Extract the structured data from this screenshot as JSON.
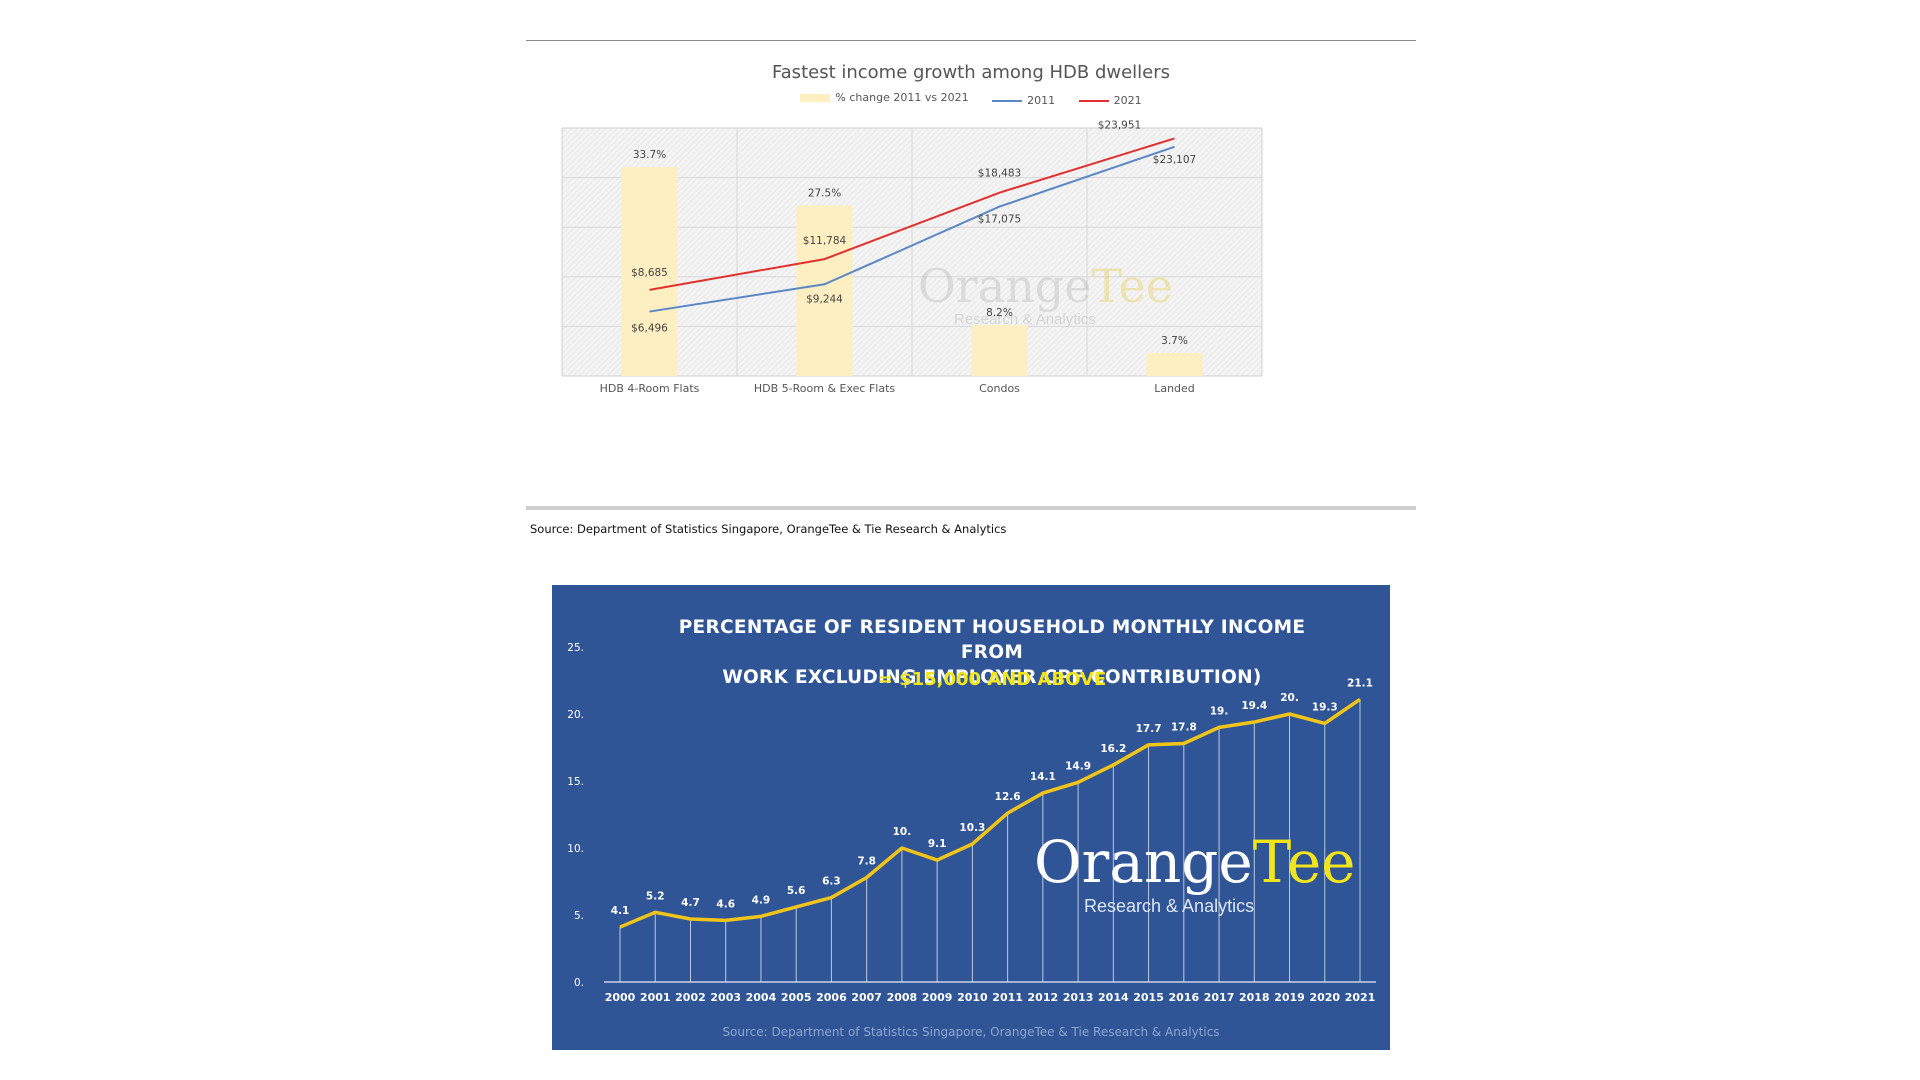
{
  "top_chart": {
    "title": "Fastest income growth among HDB dwellers",
    "legend": {
      "bar": "% change 2011 vs 2021",
      "line1": "2011",
      "line2": "2021"
    },
    "source": "Source: Department of Statistics Singapore, OrangeTee & Tie Research & Analytics",
    "logo": {
      "brand_a": "Orange",
      "brand_b": "Tee",
      "tagline": "Research & Analytics"
    }
  },
  "bottom_chart": {
    "title_line1": "PERCENTAGE OF RESIDENT HOUSEHOLD MONTHLY INCOME FROM",
    "title_line2": "WORK EXCLUDING EMPLOYER CPF CONTRIBUTION)",
    "subtitle": "= $15,000 AND ABOVE",
    "source": "Source: Department of Statistics Singapore, OrangeTee & Tie Research & Analytics",
    "logo": {
      "brand_a": "Orange",
      "brand_b": "Tee",
      "tagline": "Research & Analytics"
    }
  },
  "colors": {
    "bar": "#fdefc2",
    "line_2011": "#5b87c5",
    "line_2021": "#e03030",
    "bottom_bg": "#2f5597",
    "bottom_line": "#f0c419",
    "bottom_highlight": "#f2e51c"
  },
  "chart_data": [
    {
      "type": "bar",
      "title": "Fastest income growth among HDB dwellers",
      "categories": [
        "HDB 4-Room Flats",
        "HDB 5-Room & Exec Flats",
        "Condos",
        "Landed"
      ],
      "series": [
        {
          "name": "% change 2011 vs 2021",
          "type": "bar",
          "values": [
            33.7,
            27.5,
            8.2,
            3.7
          ],
          "labels": [
            "33.7%",
            "27.5%",
            "8.2%",
            "3.7%"
          ]
        },
        {
          "name": "2011",
          "type": "line",
          "values": [
            6496,
            9244,
            17075,
            23107
          ],
          "labels": [
            "$6,496",
            "$9,244",
            "$17,075",
            "$23,107"
          ]
        },
        {
          "name": "2021",
          "type": "line",
          "values": [
            8685,
            11784,
            18483,
            23951
          ],
          "labels": [
            "$8,685",
            "$11,784",
            "$18,483",
            "$23,951"
          ]
        }
      ],
      "bar_ylim": [
        0,
        40
      ],
      "line_ylim": [
        0,
        25000
      ],
      "grid": true,
      "legend_position": "top"
    },
    {
      "type": "line",
      "title": "PERCENTAGE OF RESIDENT HOUSEHOLD MONTHLY INCOME FROM WORK EXCLUDING EMPLOYER CPF CONTRIBUTION)",
      "subtitle": "= $15,000 AND ABOVE",
      "x": [
        "2000",
        "2001",
        "2002",
        "2003",
        "2004",
        "2005",
        "2006",
        "2007",
        "2008",
        "2009",
        "2010",
        "2011",
        "2012",
        "2013",
        "2014",
        "2015",
        "2016",
        "2017",
        "2018",
        "2019",
        "2020",
        "2021"
      ],
      "values": [
        4.1,
        5.2,
        4.7,
        4.6,
        4.9,
        5.6,
        6.3,
        7.8,
        10.0,
        9.1,
        10.3,
        12.6,
        14.1,
        14.9,
        16.2,
        17.7,
        17.8,
        19.0,
        19.4,
        20.0,
        19.3,
        21.1
      ],
      "labels": [
        "4.1",
        "5.2",
        "4.7",
        "4.6",
        "4.9",
        "5.6",
        "6.3",
        "7.8",
        "10.",
        "9.1",
        "10.3",
        "12.6",
        "14.1",
        "14.9",
        "16.2",
        "17.7",
        "17.8",
        "19.",
        "19.4",
        "20.",
        "19.3",
        "21.1"
      ],
      "y_ticks": [
        "0.",
        "5.",
        "10.",
        "15.",
        "20.",
        "25."
      ],
      "ylim": [
        0,
        25
      ],
      "grid": false
    }
  ]
}
